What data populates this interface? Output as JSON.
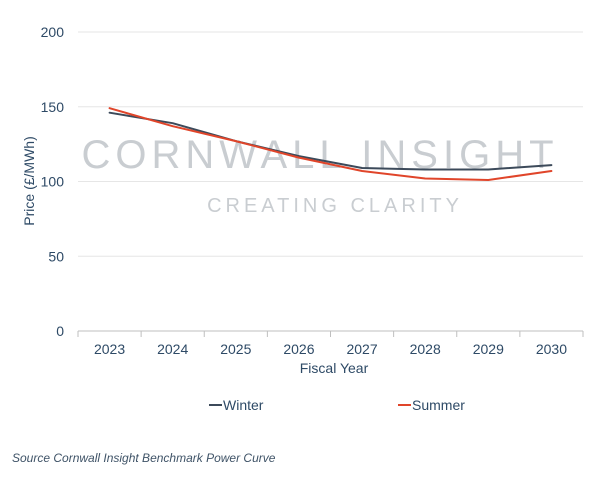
{
  "chart_data": {
    "type": "line",
    "title": "",
    "xlabel": "Fiscal Year",
    "ylabel": "Price (£/MWh)",
    "categories": [
      "2023",
      "2024",
      "2025",
      "2026",
      "2027",
      "2028",
      "2029",
      "2030"
    ],
    "ylim": [
      0,
      200
    ],
    "yticks": [
      0,
      50,
      100,
      150,
      200
    ],
    "grid": true,
    "legend_position": "bottom",
    "series": [
      {
        "name": "Winter",
        "color": "#3c4a5a",
        "values": [
          146,
          139,
          127,
          117,
          109,
          108,
          108,
          111
        ]
      },
      {
        "name": "Summer",
        "color": "#e0452a",
        "values": [
          149,
          137,
          127,
          116,
          107,
          102,
          101,
          107
        ]
      }
    ]
  },
  "watermark": {
    "line1": "CORNWALL INSIGHT",
    "line2": "CREATING CLARITY"
  },
  "source_note": "Source Cornwall Insight Benchmark Power Curve"
}
